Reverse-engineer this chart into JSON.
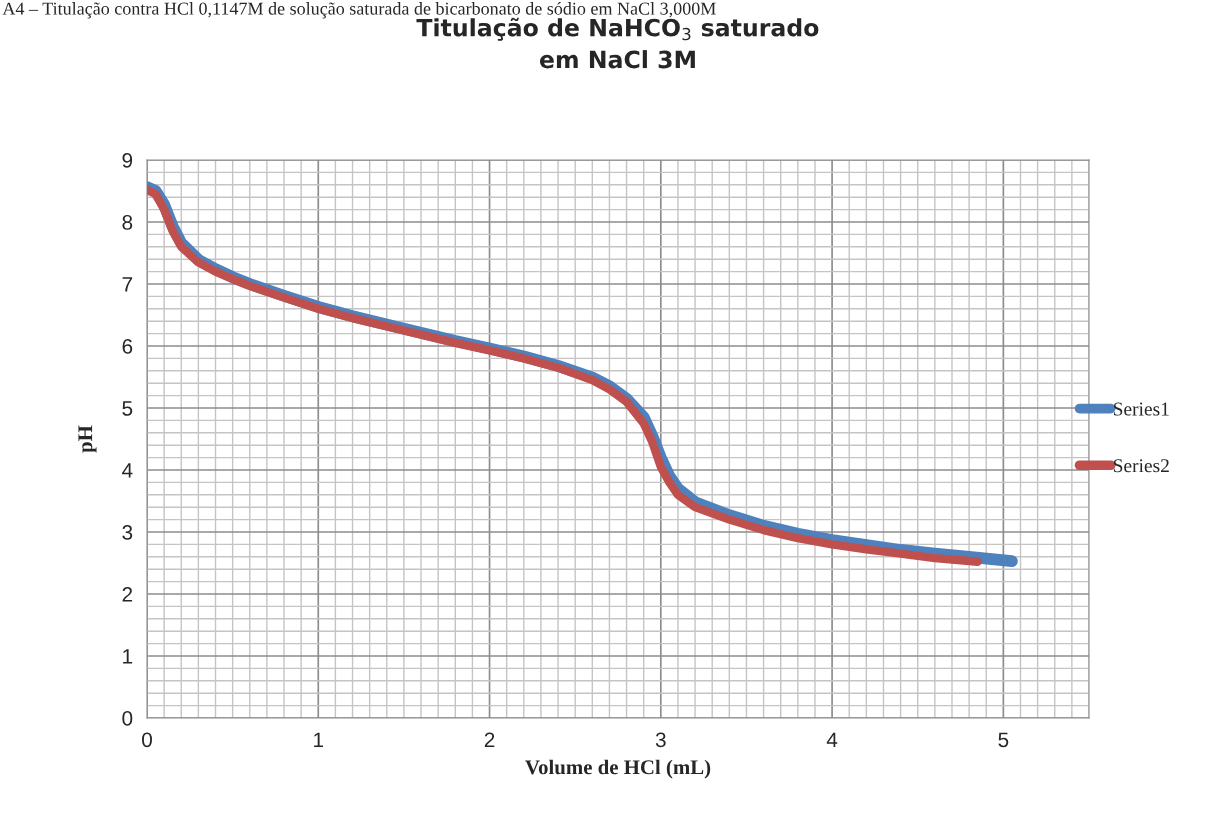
{
  "chart_data": {
    "type": "line",
    "title": "Titulação de NaHCO$_{3}$ saturado\nem NaCl 3M",
    "xlabel": "Volume de HCl (mL)",
    "ylabel": "pH",
    "annotations": [
      "A4 – Titulação contra HCl 0,1147M de solução saturada de bicarbonato de sódio em NaCl 3,000M"
    ],
    "series": [
      {
        "name": "Series1",
        "color": "#4f81bd",
        "x": [
          0,
          0.05,
          0.1,
          0.15,
          0.2,
          0.3,
          0.4,
          0.5,
          0.6,
          0.8,
          1.0,
          1.2,
          1.5,
          1.8,
          2.0,
          2.2,
          2.4,
          2.6,
          2.7,
          2.8,
          2.9,
          2.95,
          3.0,
          3.05,
          3.1,
          3.2,
          3.4,
          3.6,
          3.8,
          4.0,
          4.2,
          4.4,
          4.6,
          4.8,
          5.05
        ],
        "values": [
          8.56,
          8.5,
          8.28,
          7.93,
          7.66,
          7.39,
          7.24,
          7.11,
          7.0,
          6.81,
          6.63,
          6.48,
          6.28,
          6.08,
          5.96,
          5.83,
          5.68,
          5.49,
          5.35,
          5.15,
          4.85,
          4.55,
          4.2,
          3.9,
          3.7,
          3.48,
          3.27,
          3.1,
          2.97,
          2.87,
          2.79,
          2.71,
          2.65,
          2.6,
          2.53
        ]
      },
      {
        "name": "Series2",
        "color": "#c0504d",
        "x": [
          0,
          0.05,
          0.1,
          0.15,
          0.2,
          0.3,
          0.4,
          0.5,
          0.6,
          0.8,
          1.0,
          1.2,
          1.5,
          1.8,
          2.0,
          2.2,
          2.4,
          2.6,
          2.7,
          2.8,
          2.9,
          2.95,
          3.0,
          3.05,
          3.1,
          3.2,
          3.4,
          3.6,
          3.8,
          4.0,
          4.2,
          4.4,
          4.6,
          4.85
        ],
        "values": [
          8.52,
          8.45,
          8.2,
          7.85,
          7.6,
          7.35,
          7.2,
          7.08,
          6.97,
          6.78,
          6.6,
          6.45,
          6.25,
          6.05,
          5.93,
          5.8,
          5.65,
          5.45,
          5.3,
          5.1,
          4.75,
          4.45,
          4.05,
          3.8,
          3.6,
          3.4,
          3.2,
          3.03,
          2.9,
          2.8,
          2.72,
          2.65,
          2.58,
          2.52
        ]
      }
    ],
    "xlim": [
      0,
      5.5
    ],
    "xticks": [
      0,
      1,
      2,
      3,
      4,
      5
    ],
    "ylim": [
      0,
      9
    ],
    "yticks": [
      0,
      1,
      2,
      3,
      4,
      5,
      6,
      7,
      8,
      9
    ],
    "grid": true,
    "legend": "right",
    "marker": "none",
    "line_style": "solid"
  }
}
